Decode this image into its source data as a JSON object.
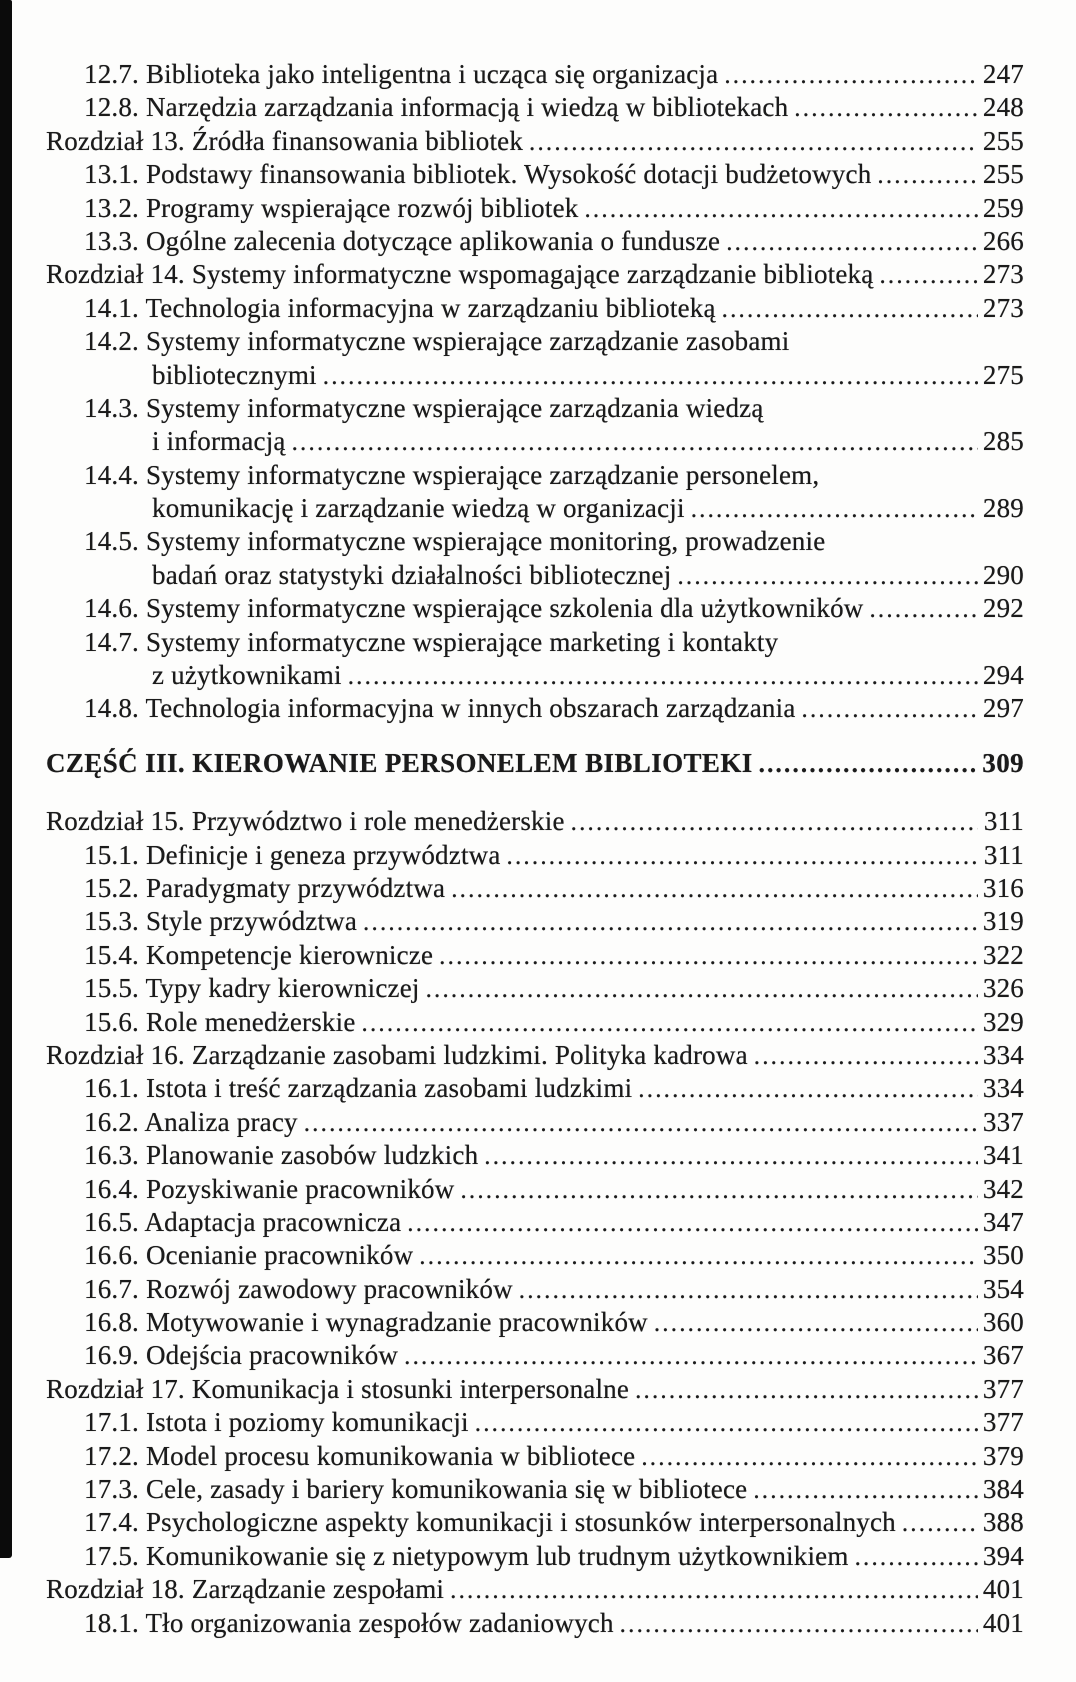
{
  "page": {
    "background": "#fdfdfc",
    "text_color": "#1b1b1b",
    "edge_bar_color": "#0b0b0b"
  },
  "toc": {
    "entries": [
      {
        "level": "sub",
        "text": "12.7. Biblioteka jako inteligentna i ucząca się organizacja",
        "page": "247"
      },
      {
        "level": "sub",
        "text": "12.8. Narzędzia zarządzania informacją i wiedzą w bibliotekach",
        "page": "248"
      },
      {
        "level": "chapter",
        "text": "Rozdział 13. Źródła finansowania bibliotek",
        "page": "255"
      },
      {
        "level": "sub",
        "text": "13.1. Podstawy finansowania bibliotek. Wysokość dotacji budżetowych",
        "page": "255"
      },
      {
        "level": "sub",
        "text": "13.2. Programy wspierające rozwój bibliotek",
        "page": "259"
      },
      {
        "level": "sub",
        "text": "13.3. Ogólne zalecenia dotyczące aplikowania o fundusze",
        "page": "266"
      },
      {
        "level": "chapter",
        "text": "Rozdział 14. Systemy informatyczne wspomagające zarządzanie biblioteką",
        "page": "273"
      },
      {
        "level": "sub",
        "text": "14.1. Technologia informacyjna w zarządzaniu biblioteką",
        "page": "273"
      },
      {
        "level": "sub",
        "text": "14.2. Systemy informatyczne wspierające zarządzanie zasobami",
        "page": null
      },
      {
        "level": "cont",
        "text": "bibliotecznymi",
        "page": "275"
      },
      {
        "level": "sub",
        "text": "14.3. Systemy informatyczne wspierające zarządzania wiedzą",
        "page": null
      },
      {
        "level": "cont",
        "text": "i informacją",
        "page": "285"
      },
      {
        "level": "sub",
        "text": "14.4. Systemy informatyczne wspierające zarządzanie personelem,",
        "page": null
      },
      {
        "level": "cont",
        "text": "komunikację i zarządzanie wiedzą w organizacji",
        "page": "289"
      },
      {
        "level": "sub",
        "text": "14.5. Systemy informatyczne wspierające monitoring, prowadzenie",
        "page": null
      },
      {
        "level": "cont",
        "text": "badań oraz statystyki działalności bibliotecznej",
        "page": "290"
      },
      {
        "level": "sub",
        "text": "14.6. Systemy informatyczne wspierające szkolenia dla użytkowników",
        "page": "292"
      },
      {
        "level": "sub",
        "text": "14.7. Systemy informatyczne wspierające marketing i kontakty",
        "page": null
      },
      {
        "level": "cont",
        "text": "z użytkownikami",
        "page": "294"
      },
      {
        "level": "sub",
        "text": "14.8. Technologia informacyjna w innych obszarach zarządzania",
        "page": "297"
      },
      {
        "level": "part",
        "text": "CZĘŚĆ III. KIEROWANIE PERSONELEM BIBLIOTEKI",
        "page": "309"
      },
      {
        "level": "chapter",
        "text": "Rozdział 15. Przywództwo i role menedżerskie",
        "page": "311"
      },
      {
        "level": "sub",
        "text": "15.1. Definicje i geneza przywództwa",
        "page": "311"
      },
      {
        "level": "sub",
        "text": "15.2. Paradygmaty przywództwa",
        "page": "316"
      },
      {
        "level": "sub",
        "text": "15.3. Style przywództwa",
        "page": "319"
      },
      {
        "level": "sub",
        "text": "15.4. Kompetencje kierownicze",
        "page": "322"
      },
      {
        "level": "sub",
        "text": "15.5. Typy kadry kierowniczej",
        "page": "326"
      },
      {
        "level": "sub",
        "text": "15.6. Role menedżerskie",
        "page": "329"
      },
      {
        "level": "chapter",
        "text": "Rozdział 16. Zarządzanie zasobami ludzkimi. Polityka kadrowa",
        "page": "334"
      },
      {
        "level": "sub",
        "text": "16.1. Istota i treść zarządzania zasobami ludzkimi",
        "page": "334"
      },
      {
        "level": "sub",
        "text": "16.2. Analiza pracy",
        "page": "337"
      },
      {
        "level": "sub",
        "text": "16.3. Planowanie zasobów ludzkich",
        "page": "341"
      },
      {
        "level": "sub",
        "text": "16.4. Pozyskiwanie pracowników",
        "page": "342"
      },
      {
        "level": "sub",
        "text": "16.5. Adaptacja pracownicza",
        "page": "347"
      },
      {
        "level": "sub",
        "text": "16.6. Ocenianie pracowników",
        "page": "350"
      },
      {
        "level": "sub",
        "text": "16.7. Rozwój zawodowy pracowników",
        "page": "354"
      },
      {
        "level": "sub",
        "text": "16.8. Motywowanie i wynagradzanie pracowników",
        "page": "360"
      },
      {
        "level": "sub",
        "text": "16.9. Odejścia pracowników",
        "page": "367"
      },
      {
        "level": "chapter",
        "text": "Rozdział 17. Komunikacja i stosunki interpersonalne",
        "page": "377"
      },
      {
        "level": "sub",
        "text": "17.1. Istota i poziomy komunikacji",
        "page": "377"
      },
      {
        "level": "sub",
        "text": "17.2. Model procesu komunikowania w bibliotece",
        "page": "379"
      },
      {
        "level": "sub",
        "text": "17.3. Cele, zasady i bariery komunikowania się w bibliotece",
        "page": "384"
      },
      {
        "level": "sub",
        "text": "17.4. Psychologiczne aspekty komunikacji i stosunków interpersonalnych",
        "page": "388"
      },
      {
        "level": "sub",
        "text": "17.5. Komunikowanie się z nietypowym lub trudnym użytkownikiem",
        "page": "394"
      },
      {
        "level": "chapter",
        "text": "Rozdział 18. Zarządzanie zespołami",
        "page": "401"
      },
      {
        "level": "sub",
        "text": "18.1. Tło organizowania zespołów zadaniowych",
        "page": "401"
      }
    ]
  }
}
